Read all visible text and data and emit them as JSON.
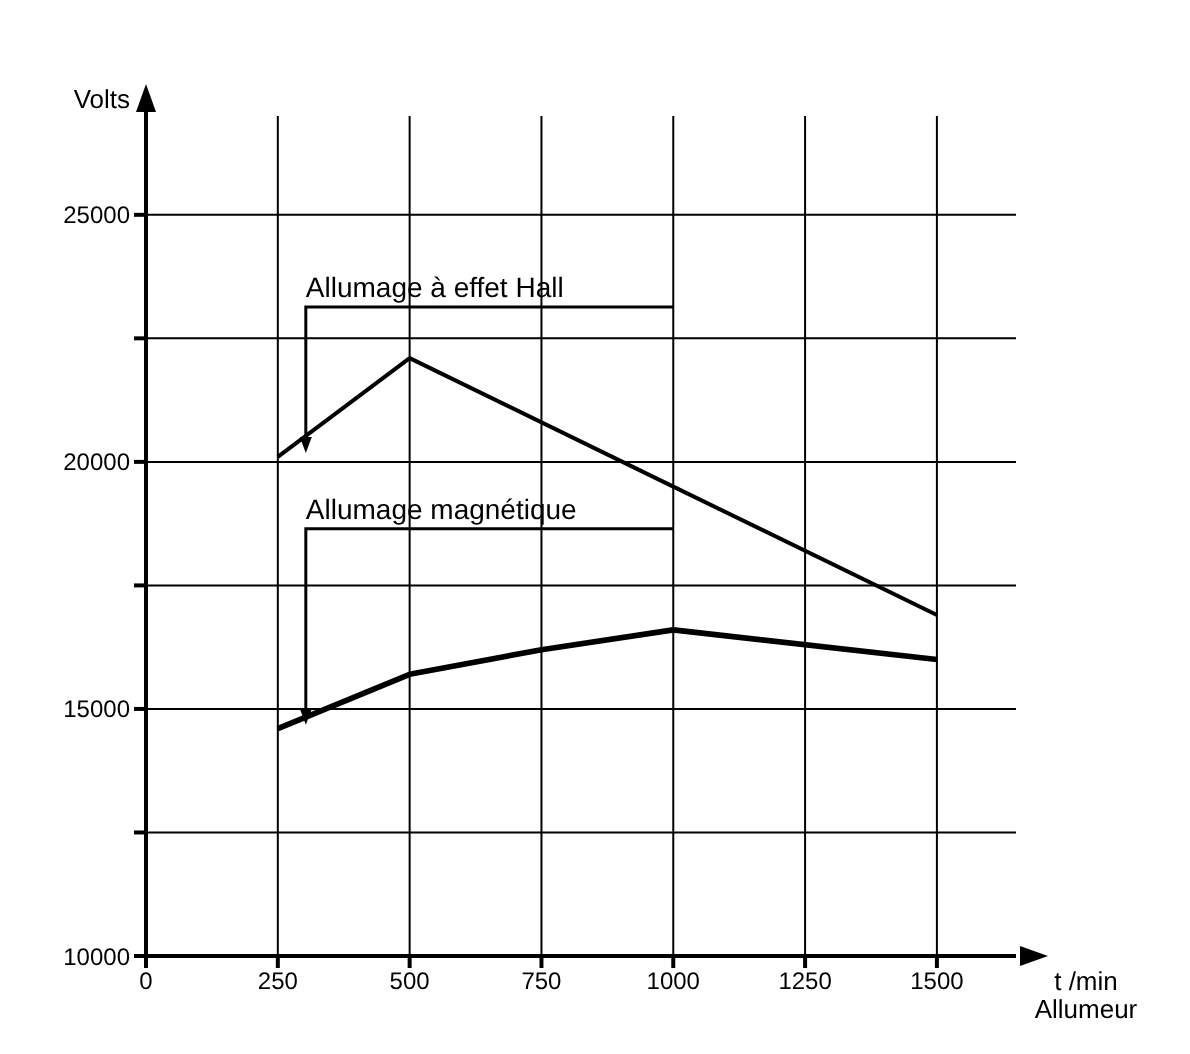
{
  "chart_data": {
    "type": "line",
    "ylabel": "Volts",
    "xlabel": "t /min Allumeur",
    "xlim": [
      0,
      1650
    ],
    "xticks": [
      0,
      250,
      500,
      750,
      1000,
      1250,
      1500
    ],
    "ylim": [
      10000,
      27000
    ],
    "yticks": [
      10000,
      {
        "value": 12500,
        "label": null
      },
      15000,
      {
        "value": 17500,
        "label": null
      },
      20000,
      {
        "value": 22500,
        "label": null
      },
      25000
    ],
    "grid": true,
    "marker": "none",
    "line_style": "solid",
    "series": [
      {
        "name": "Allumage à effet Hall",
        "color": "#000000",
        "x": [
          250,
          500,
          1000,
          1500
        ],
        "values": [
          20100,
          22100,
          19500,
          16900
        ]
      },
      {
        "name": "Allumage magnétique",
        "color": "#000000",
        "x": [
          250,
          500,
          750,
          1000,
          1500
        ],
        "values": [
          14600,
          15700,
          16200,
          16600,
          16000
        ]
      }
    ]
  }
}
